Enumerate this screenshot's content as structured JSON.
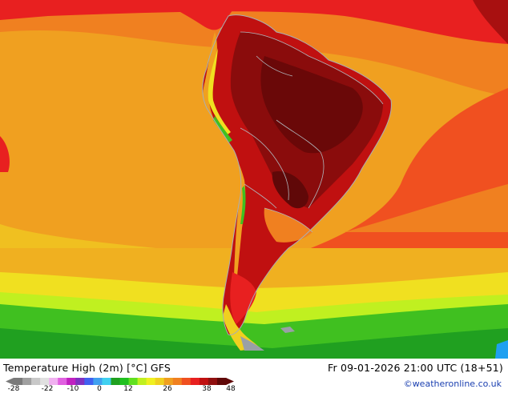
{
  "map": {
    "title": "Temperature High (2m) [°C] GFS",
    "run_info": "Fr 09-01-2026 21:00 UTC (18+51)",
    "credit": "©weatheronline.co.uk",
    "legend": {
      "ticks": [
        "-28",
        "-22",
        "-10",
        "0",
        "12",
        "26",
        "38",
        "48"
      ],
      "colors": [
        "#7a7a7a",
        "#a0a0a0",
        "#c8c8c8",
        "#e0e0e0",
        "#f0b0f0",
        "#e060e0",
        "#c020c0",
        "#8030c0",
        "#4060f0",
        "#40a0f0",
        "#40d0f0",
        "#20a020",
        "#20c020",
        "#60e020",
        "#c0f020",
        "#f0f020",
        "#f0d020",
        "#f0a020",
        "#f08020",
        "#f05020",
        "#e82020",
        "#c01010",
        "#901010",
        "#600808"
      ]
    }
  }
}
